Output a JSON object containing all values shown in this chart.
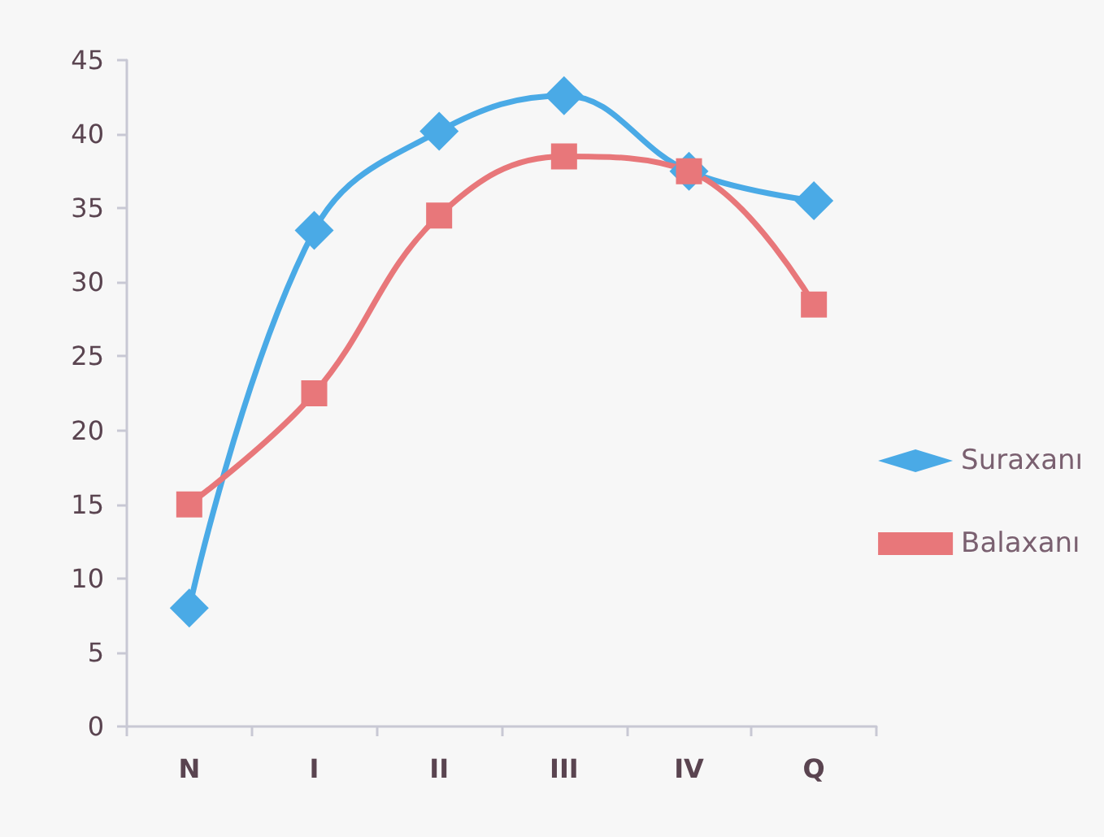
{
  "chart_data": {
    "type": "line",
    "categories": [
      "N",
      "I",
      "II",
      "III",
      "IV",
      "Q"
    ],
    "series": [
      {
        "name": "Suraxanı",
        "color": "#4aaae6",
        "marker": "diamond",
        "values": [
          8,
          33.5,
          40.2,
          42.6,
          37.5,
          35.5
        ]
      },
      {
        "name": "Balaxanı",
        "color": "#e8777a",
        "marker": "square",
        "values": [
          15,
          22.5,
          34.5,
          38.5,
          37.5,
          28.5
        ]
      }
    ],
    "ylim": [
      0,
      45
    ],
    "yticks": [
      0,
      5,
      10,
      15,
      20,
      25,
      30,
      35,
      40,
      45
    ],
    "grid": false,
    "legend": "right"
  }
}
